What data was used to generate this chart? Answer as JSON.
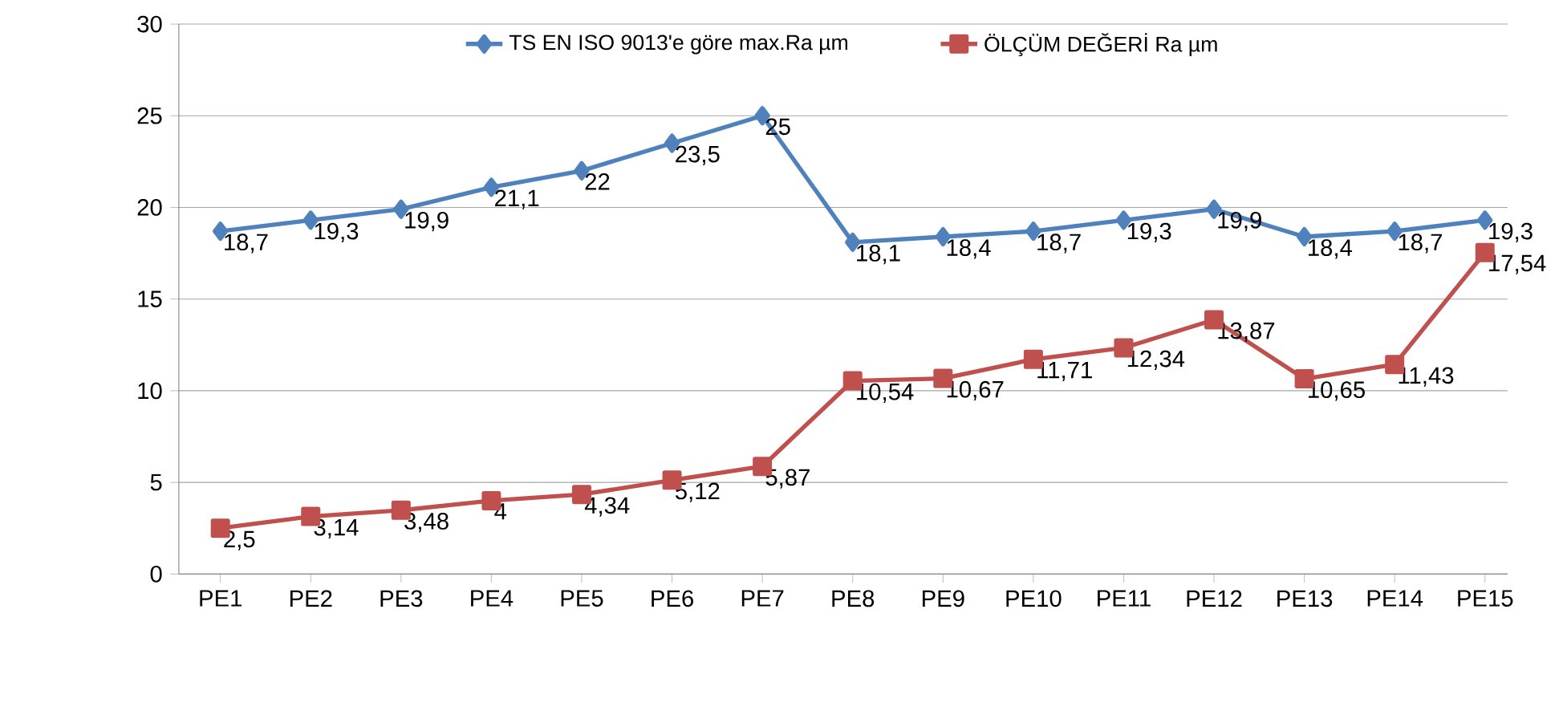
{
  "chart_data": {
    "type": "line",
    "categories": [
      "PE1",
      "PE2",
      "PE3",
      "PE4",
      "PE5",
      "PE6",
      "PE7",
      "PE8",
      "PE9",
      "PE10",
      "PE11",
      "PE12",
      "PE13",
      "PE14",
      "PE15"
    ],
    "series": [
      {
        "name": "TS EN ISO 9013'e göre max.Ra   µm",
        "color": "#4f81bd",
        "marker": "diamond",
        "values": [
          18.7,
          19.3,
          19.9,
          21.1,
          22,
          23.5,
          25,
          18.1,
          18.4,
          18.7,
          19.3,
          19.9,
          18.4,
          18.7,
          19.3
        ],
        "value_labels": [
          "18,7",
          "19,3",
          "19,9",
          "21,1",
          "22",
          "23,5",
          "25",
          "18,1",
          "18,4",
          "18,7",
          "19,3",
          "19,9",
          "18,4",
          "18,7",
          "19,3"
        ]
      },
      {
        "name": "ÖLÇÜM DEĞERİ Ra        µm",
        "color": "#c0504d",
        "marker": "square",
        "values": [
          2.5,
          3.14,
          3.48,
          4,
          4.34,
          5.12,
          5.87,
          10.54,
          10.67,
          11.71,
          12.34,
          13.87,
          10.65,
          11.43,
          17.54
        ],
        "value_labels": [
          "2,5",
          "3,14",
          "3,48",
          "4",
          "4,34",
          "5,12",
          "5,87",
          "10,54",
          "10,67",
          "11,71",
          "12,34",
          "13,87",
          "10,65",
          "11,43",
          "17,54"
        ]
      }
    ],
    "ylim": [
      0,
      30
    ],
    "yticks": [
      0,
      5,
      10,
      15,
      20,
      25,
      30
    ],
    "grid": "y",
    "legend": "top",
    "line_style": "solid"
  }
}
